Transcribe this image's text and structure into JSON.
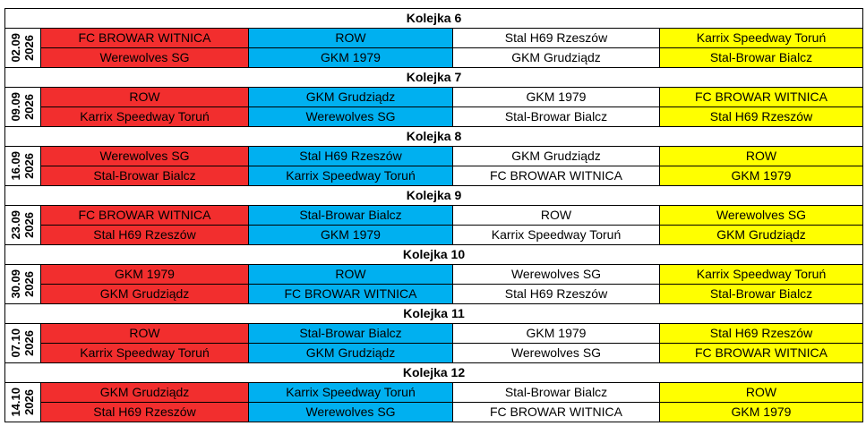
{
  "colors": {
    "col1": "#F22E2E",
    "col2": "#00B0F0",
    "col3": "#FFFFFF",
    "col4": "#FFFF00"
  },
  "rounds": [
    {
      "title": "Kolejka 6",
      "date": "02.09",
      "year": "2026",
      "rows": [
        [
          "FC BROWAR WITNICA",
          "ROW",
          "Stal H69 Rzeszów",
          "Karrix Speedway Toruń"
        ],
        [
          "Werewolves SG",
          "GKM 1979",
          "GKM Grudziądz",
          "Stal-Browar Bialcz"
        ]
      ]
    },
    {
      "title": "Kolejka 7",
      "date": "09.09",
      "year": "2026",
      "rows": [
        [
          "ROW",
          "GKM Grudziądz",
          "GKM 1979",
          "FC BROWAR WITNICA"
        ],
        [
          "Karrix Speedway Toruń",
          "Werewolves SG",
          "Stal-Browar Bialcz",
          "Stal H69 Rzeszów"
        ]
      ]
    },
    {
      "title": "Kolejka 8",
      "date": "16.09",
      "year": "2026",
      "rows": [
        [
          "Werewolves SG",
          "Stal H69 Rzeszów",
          "GKM Grudziądz",
          "ROW"
        ],
        [
          "Stal-Browar Bialcz",
          "Karrix Speedway Toruń",
          "FC BROWAR WITNICA",
          "GKM 1979"
        ]
      ]
    },
    {
      "title": "Kolejka 9",
      "date": "23.09",
      "year": "2026",
      "rows": [
        [
          "FC BROWAR WITNICA",
          "Stal-Browar Bialcz",
          "ROW",
          "Werewolves SG"
        ],
        [
          "Stal H69 Rzeszów",
          "GKM 1979",
          "Karrix Speedway Toruń",
          "GKM Grudziądz"
        ]
      ]
    },
    {
      "title": "Kolejka 10",
      "date": "30.09",
      "year": "2026",
      "rows": [
        [
          "GKM 1979",
          "ROW",
          "Werewolves SG",
          "Karrix Speedway Toruń"
        ],
        [
          "GKM Grudziądz",
          "FC BROWAR WITNICA",
          "Stal H69 Rzeszów",
          "Stal-Browar Bialcz"
        ]
      ]
    },
    {
      "title": "Kolejka 11",
      "date": "07.10",
      "year": "2026",
      "rows": [
        [
          "ROW",
          "Stal-Browar Bialcz",
          "GKM 1979",
          "Stal H69 Rzeszów"
        ],
        [
          "Karrix Speedway Toruń",
          "GKM Grudziądz",
          "Werewolves SG",
          "FC BROWAR WITNICA"
        ]
      ]
    },
    {
      "title": "Kolejka 12",
      "date": "14.10",
      "year": "2026",
      "rows": [
        [
          "GKM Grudziądz",
          "Karrix Speedway Toruń",
          "Stal-Browar Bialcz",
          "ROW"
        ],
        [
          "Stal H69 Rzeszów",
          "Werewolves SG",
          "FC BROWAR WITNICA",
          "GKM 1979"
        ]
      ]
    }
  ]
}
